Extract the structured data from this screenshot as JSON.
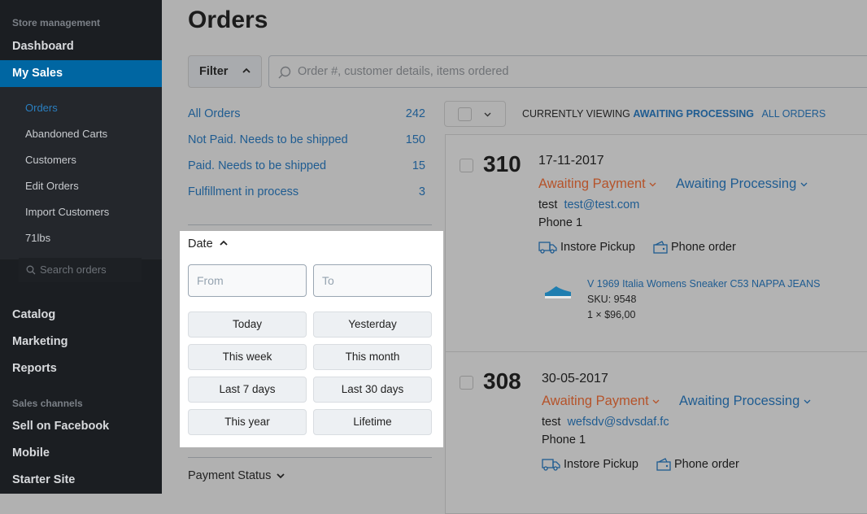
{
  "sidebar": {
    "section1": "Store management",
    "items": [
      "Dashboard",
      "My Sales"
    ],
    "sub_items": [
      "Orders",
      "Abandoned Carts",
      "Customers",
      "Edit Orders",
      "Import Customers",
      "71lbs"
    ],
    "search_placeholder": "Search orders",
    "items2": [
      "Catalog",
      "Marketing",
      "Reports"
    ],
    "section2": "Sales channels",
    "items3": [
      "Sell on Facebook",
      "Mobile",
      "Starter Site"
    ]
  },
  "page": {
    "title": "Orders"
  },
  "toolbar": {
    "filter_label": "Filter",
    "search_placeholder": "Order #, customer details, items ordered"
  },
  "stats": [
    {
      "label": "All Orders",
      "count": "242"
    },
    {
      "label": "Not Paid. Needs to be shipped",
      "count": "150"
    },
    {
      "label": "Paid. Needs to be shipped",
      "count": "15"
    },
    {
      "label": "Fulfillment in process",
      "count": "3"
    }
  ],
  "date_filter": {
    "title": "Date",
    "from_placeholder": "From",
    "to_placeholder": "To",
    "buttons": [
      "Today",
      "Yesterday",
      "This week",
      "This month",
      "Last 7 days",
      "Last 30 days",
      "This year",
      "Lifetime"
    ]
  },
  "payment_status_label": "Payment Status",
  "viewing": {
    "prefix": "CURRENTLY VIEWING",
    "current": "AWAITING PROCESSING",
    "all": "ALL ORDERS"
  },
  "orders": [
    {
      "number": "310",
      "date": "17-11-2017",
      "payment": "Awaiting Payment",
      "fulfillment": "Awaiting Processing",
      "customer": "test",
      "email": "test@test.com",
      "phone": "Phone 1",
      "shipping": "Instore Pickup",
      "source": "Phone order",
      "item": {
        "name": "V 1969 Italia Womens Sneaker C53 NAPPA JEANS",
        "sku": "SKU: 9548",
        "qty_price": "1 × $96,00"
      }
    },
    {
      "number": "308",
      "date": "30-05-2017",
      "payment": "Awaiting Payment",
      "fulfillment": "Awaiting Processing",
      "customer": "test",
      "email": "wefsdv@sdvsdaf.fc",
      "phone": "Phone 1",
      "shipping": "Instore Pickup",
      "source": "Phone order"
    }
  ],
  "colors": {
    "accent": "#0066a2",
    "payment": "#b5532a",
    "link": "#1f5c91"
  }
}
